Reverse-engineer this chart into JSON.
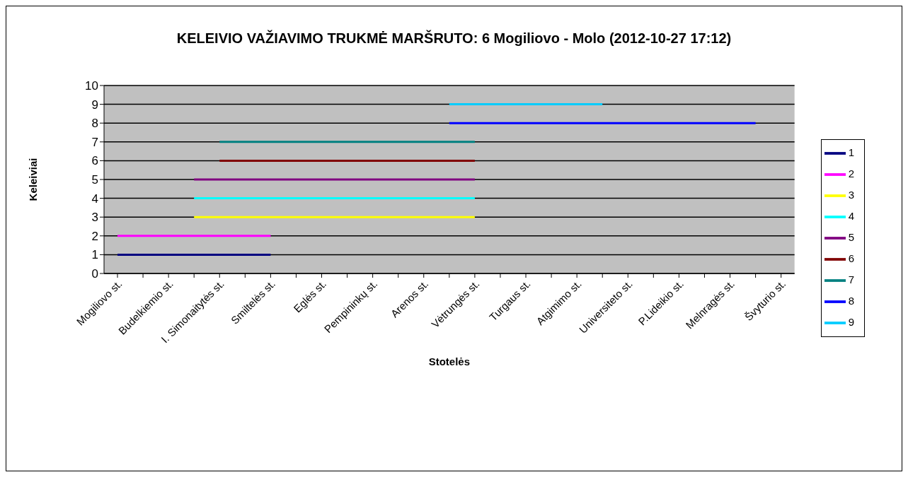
{
  "chart_data": {
    "type": "line",
    "title": "KELEIVIO VAŽIAVIMO TRUKMĖ MARŠRUTO: 6 Mogiliovo - Molo (2012-10-27 17:12)",
    "xlabel": "Stotelės",
    "ylabel": "Keleiviai",
    "categories": [
      "Mogiliovo st.",
      null,
      "Budelkiemio st.",
      null,
      "I. Simonaitytės st.",
      null,
      "Smiltelės st.",
      null,
      "Eglės st.",
      null,
      "Pempininkų st.",
      null,
      "Arenos st.",
      null,
      "Vėtrungės st.",
      null,
      "Turgaus st.",
      null,
      "Atgimimo st.",
      null,
      "Universiteto st.",
      null,
      "P.Lideikio st.",
      null,
      "Melnragės st.",
      null,
      "Švyturio st."
    ],
    "series": [
      {
        "name": "1",
        "color": "#000080",
        "values": [
          1,
          1,
          1,
          1,
          1,
          1,
          1,
          null,
          null,
          null,
          null,
          null,
          null,
          null,
          null,
          null,
          null,
          null,
          null,
          null,
          null,
          null,
          null,
          null,
          null,
          null,
          null
        ]
      },
      {
        "name": "2",
        "color": "#ff00ff",
        "values": [
          2,
          2,
          2,
          2,
          2,
          2,
          2,
          null,
          null,
          null,
          null,
          null,
          null,
          null,
          null,
          null,
          null,
          null,
          null,
          null,
          null,
          null,
          null,
          null,
          null,
          null,
          null
        ]
      },
      {
        "name": "3",
        "color": "#ffff00",
        "values": [
          null,
          null,
          null,
          3,
          3,
          3,
          3,
          3,
          3,
          3,
          3,
          3,
          3,
          3,
          3,
          null,
          null,
          null,
          null,
          null,
          null,
          null,
          null,
          null,
          null,
          null,
          null
        ]
      },
      {
        "name": "4",
        "color": "#00ffff",
        "values": [
          null,
          null,
          null,
          4,
          4,
          4,
          4,
          4,
          4,
          4,
          4,
          4,
          4,
          4,
          4,
          null,
          null,
          null,
          null,
          null,
          null,
          null,
          null,
          null,
          null,
          null,
          null
        ]
      },
      {
        "name": "5",
        "color": "#800080",
        "values": [
          null,
          null,
          null,
          5,
          5,
          5,
          5,
          5,
          5,
          5,
          5,
          5,
          5,
          5,
          5,
          null,
          null,
          null,
          null,
          null,
          null,
          null,
          null,
          null,
          null,
          null,
          null
        ]
      },
      {
        "name": "6",
        "color": "#800000",
        "values": [
          null,
          null,
          null,
          null,
          6,
          6,
          6,
          6,
          6,
          6,
          6,
          6,
          6,
          6,
          6,
          null,
          null,
          null,
          null,
          null,
          null,
          null,
          null,
          null,
          null,
          null,
          null
        ]
      },
      {
        "name": "7",
        "color": "#008080",
        "values": [
          null,
          null,
          null,
          null,
          7,
          7,
          7,
          7,
          7,
          7,
          7,
          7,
          7,
          7,
          7,
          null,
          null,
          null,
          null,
          null,
          null,
          null,
          null,
          null,
          null,
          null,
          null
        ]
      },
      {
        "name": "8",
        "color": "#0000ff",
        "values": [
          null,
          null,
          null,
          null,
          null,
          null,
          null,
          null,
          null,
          null,
          null,
          null,
          null,
          8,
          8,
          8,
          8,
          8,
          8,
          8,
          8,
          8,
          8,
          8,
          8,
          8,
          null
        ]
      },
      {
        "name": "9",
        "color": "#00ccff",
        "values": [
          null,
          null,
          null,
          null,
          null,
          null,
          null,
          null,
          null,
          null,
          null,
          null,
          null,
          9,
          9,
          9,
          9,
          9,
          9,
          9,
          null,
          null,
          null,
          null,
          null,
          null,
          null
        ]
      }
    ],
    "ylim": [
      0,
      10
    ],
    "yticks": [
      0,
      1,
      2,
      3,
      4,
      5,
      6,
      7,
      8,
      9,
      10
    ],
    "grid": "y",
    "legend": "right"
  }
}
